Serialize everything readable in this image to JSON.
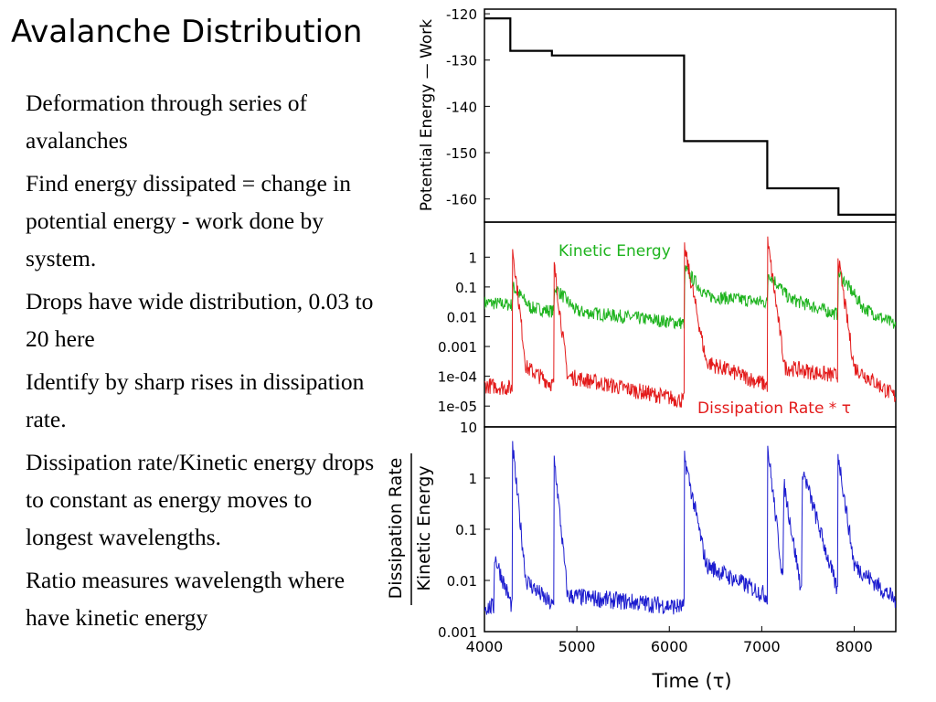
{
  "slide": {
    "title": "Avalanche Distribution",
    "bullets": [
      "Deformation through series of avalanches",
      "Find energy dissipated = change in potential energy - work done by system.",
      "Drops have wide distribution, 0.03 to 20 here",
      "Identify by sharp rises in dissipation rate.",
      "Dissipation rate/Kinetic energy drops to constant as energy moves to longest wavelengths.",
      "Ratio measures wavelength where have kinetic energy"
    ]
  },
  "colors": {
    "potential": "#000000",
    "kinetic": "#1db31d",
    "dissipation": "#e31b1b",
    "ratio": "#1c1ccf"
  },
  "chart_data": [
    {
      "type": "line",
      "ylabel": "Potential Energy — Work",
      "xlim": [
        4000,
        8450
      ],
      "ylim": [
        -165,
        -119
      ],
      "y_ticks": [
        -120,
        -130,
        -140,
        -150,
        -160
      ],
      "y_tick_labels": [
        "-120",
        "-130",
        "-140",
        "-150",
        "-160"
      ],
      "series": [
        {
          "x": [
            4000,
            4280,
            4280,
            4730,
            4730,
            6160,
            6160,
            7060,
            7060,
            7830,
            7830,
            8450
          ],
          "y": [
            -121,
            -121,
            -128,
            -128,
            -129,
            -129,
            -147.5,
            -147.5,
            -157.7,
            -157.7,
            -163.4,
            -163.4
          ]
        }
      ]
    },
    {
      "type": "line",
      "scale_y": "log",
      "xlim": [
        4000,
        8450
      ],
      "ylim": [
        2e-06,
        15
      ],
      "y_ticks": [
        1,
        0.1,
        0.01,
        0.001,
        0.0001,
        1e-05
      ],
      "y_tick_labels": [
        "1",
        "0.1",
        "0.01",
        "0.001",
        "1e-04",
        "1e-05"
      ],
      "annotations": [
        "Kinetic Energy",
        "Dissipation Rate * τ"
      ],
      "events": [
        4300,
        4750,
        6170,
        7060,
        7820
      ],
      "series": [
        {
          "name": "Kinetic Energy",
          "x": [
            4000,
            4300,
            4310,
            4500,
            4750,
            4760,
            5000,
            6160,
            6170,
            6400,
            7060,
            7070,
            7300,
            7820,
            7830,
            8100,
            8450
          ],
          "y": [
            0.03,
            0.025,
            0.1,
            0.02,
            0.015,
            0.1,
            0.015,
            0.006,
            0.4,
            0.05,
            0.03,
            0.3,
            0.04,
            0.012,
            0.3,
            0.02,
            0.005
          ]
        },
        {
          "name": "Dissipation Rate * τ",
          "x": [
            4000,
            4300,
            4305,
            4450,
            4750,
            4755,
            4900,
            6160,
            6165,
            6400,
            7060,
            7065,
            7250,
            7820,
            7825,
            8000,
            8450
          ],
          "y": [
            5e-05,
            4e-05,
            2,
            0.0002,
            5e-05,
            0.5,
            0.0001,
            1.5e-05,
            2,
            0.0003,
            5e-05,
            3,
            0.0002,
            0.0001,
            1,
            0.0002,
            2e-05
          ]
        }
      ]
    },
    {
      "type": "line",
      "scale_y": "log",
      "xlabel": "Time (τ)",
      "ylabel_numerator": "Dissipation Rate",
      "ylabel_denominator": "Kinetic Energy",
      "xlim": [
        4000,
        8450
      ],
      "ylim": [
        0.001,
        10
      ],
      "x_ticks": [
        4000,
        5000,
        6000,
        7000,
        8000
      ],
      "x_tick_labels": [
        "4000",
        "5000",
        "6000",
        "7000",
        "8000"
      ],
      "y_ticks": [
        10,
        1,
        0.1,
        0.01,
        0.001
      ],
      "y_tick_labels": [
        "10",
        "1",
        "0.1",
        "0.01",
        "0.001"
      ],
      "series": [
        {
          "x": [
            4000,
            4100,
            4110,
            4300,
            4305,
            4450,
            4750,
            4755,
            4900,
            6160,
            6165,
            6400,
            7060,
            7065,
            7230,
            7240,
            7430,
            7440,
            7820,
            7825,
            8000,
            8450
          ],
          "y": [
            0.003,
            0.003,
            0.03,
            0.003,
            4,
            0.01,
            0.003,
            2.5,
            0.005,
            0.003,
            2.5,
            0.02,
            0.005,
            4,
            0.01,
            0.8,
            0.006,
            1.5,
            0.006,
            3,
            0.02,
            0.004
          ]
        }
      ]
    }
  ]
}
